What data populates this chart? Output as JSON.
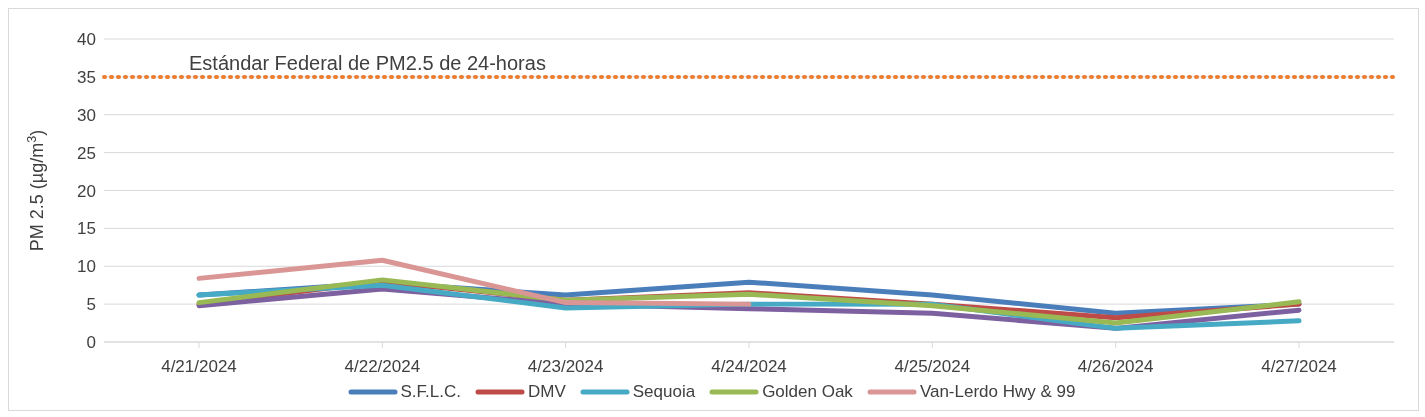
{
  "chart_data": {
    "type": "line",
    "ylabel": "PM 2.5 (µg/m$^{3}$)",
    "categories": [
      "4/21/2024",
      "4/22/2024",
      "4/23/2024",
      "4/24/2024",
      "4/25/2024",
      "4/26/2024",
      "4/27/2024"
    ],
    "series": [
      {
        "name": "S.F.L.C.",
        "color": "#4a7ebb",
        "values": [
          6.2,
          7.8,
          6.2,
          7.9,
          6.2,
          3.8,
          5.0
        ]
      },
      {
        "name": "DMV",
        "color": "#be4b48",
        "values": [
          5.0,
          8.0,
          5.5,
          6.5,
          5.0,
          3.2,
          5.0
        ]
      },
      {
        "color": "#7d60a0",
        "values": [
          4.8,
          7.0,
          5.0,
          4.4,
          3.8,
          1.8,
          4.2
        ]
      },
      {
        "name": "Sequoia",
        "color": "#46aac5",
        "values": [
          6.2,
          7.5,
          4.5,
          5.0,
          5.0,
          1.8,
          2.8
        ]
      },
      {
        "name": "Golden Oak",
        "color": "#98b954",
        "values": [
          5.2,
          8.2,
          5.5,
          6.3,
          4.8,
          2.5,
          5.3
        ]
      },
      {
        "name": "Van-Lerdo Hwy & 99",
        "color": "#d99694",
        "values": [
          8.4,
          10.8,
          5.2,
          5.0,
          null,
          null,
          null
        ]
      }
    ],
    "ylim": [
      0,
      40
    ],
    "yticks": [
      0,
      5,
      10,
      15,
      20,
      25,
      30,
      35,
      40
    ],
    "grid": "y",
    "legend": "bottom",
    "marker": "none",
    "line_style": "solid",
    "ref_lines": [
      {
        "axis": "y",
        "value": 35,
        "label": "Estándar Federal de PM2.5 de 24-horas",
        "color": "#ed7d31",
        "line_style": "dotted"
      }
    ]
  }
}
